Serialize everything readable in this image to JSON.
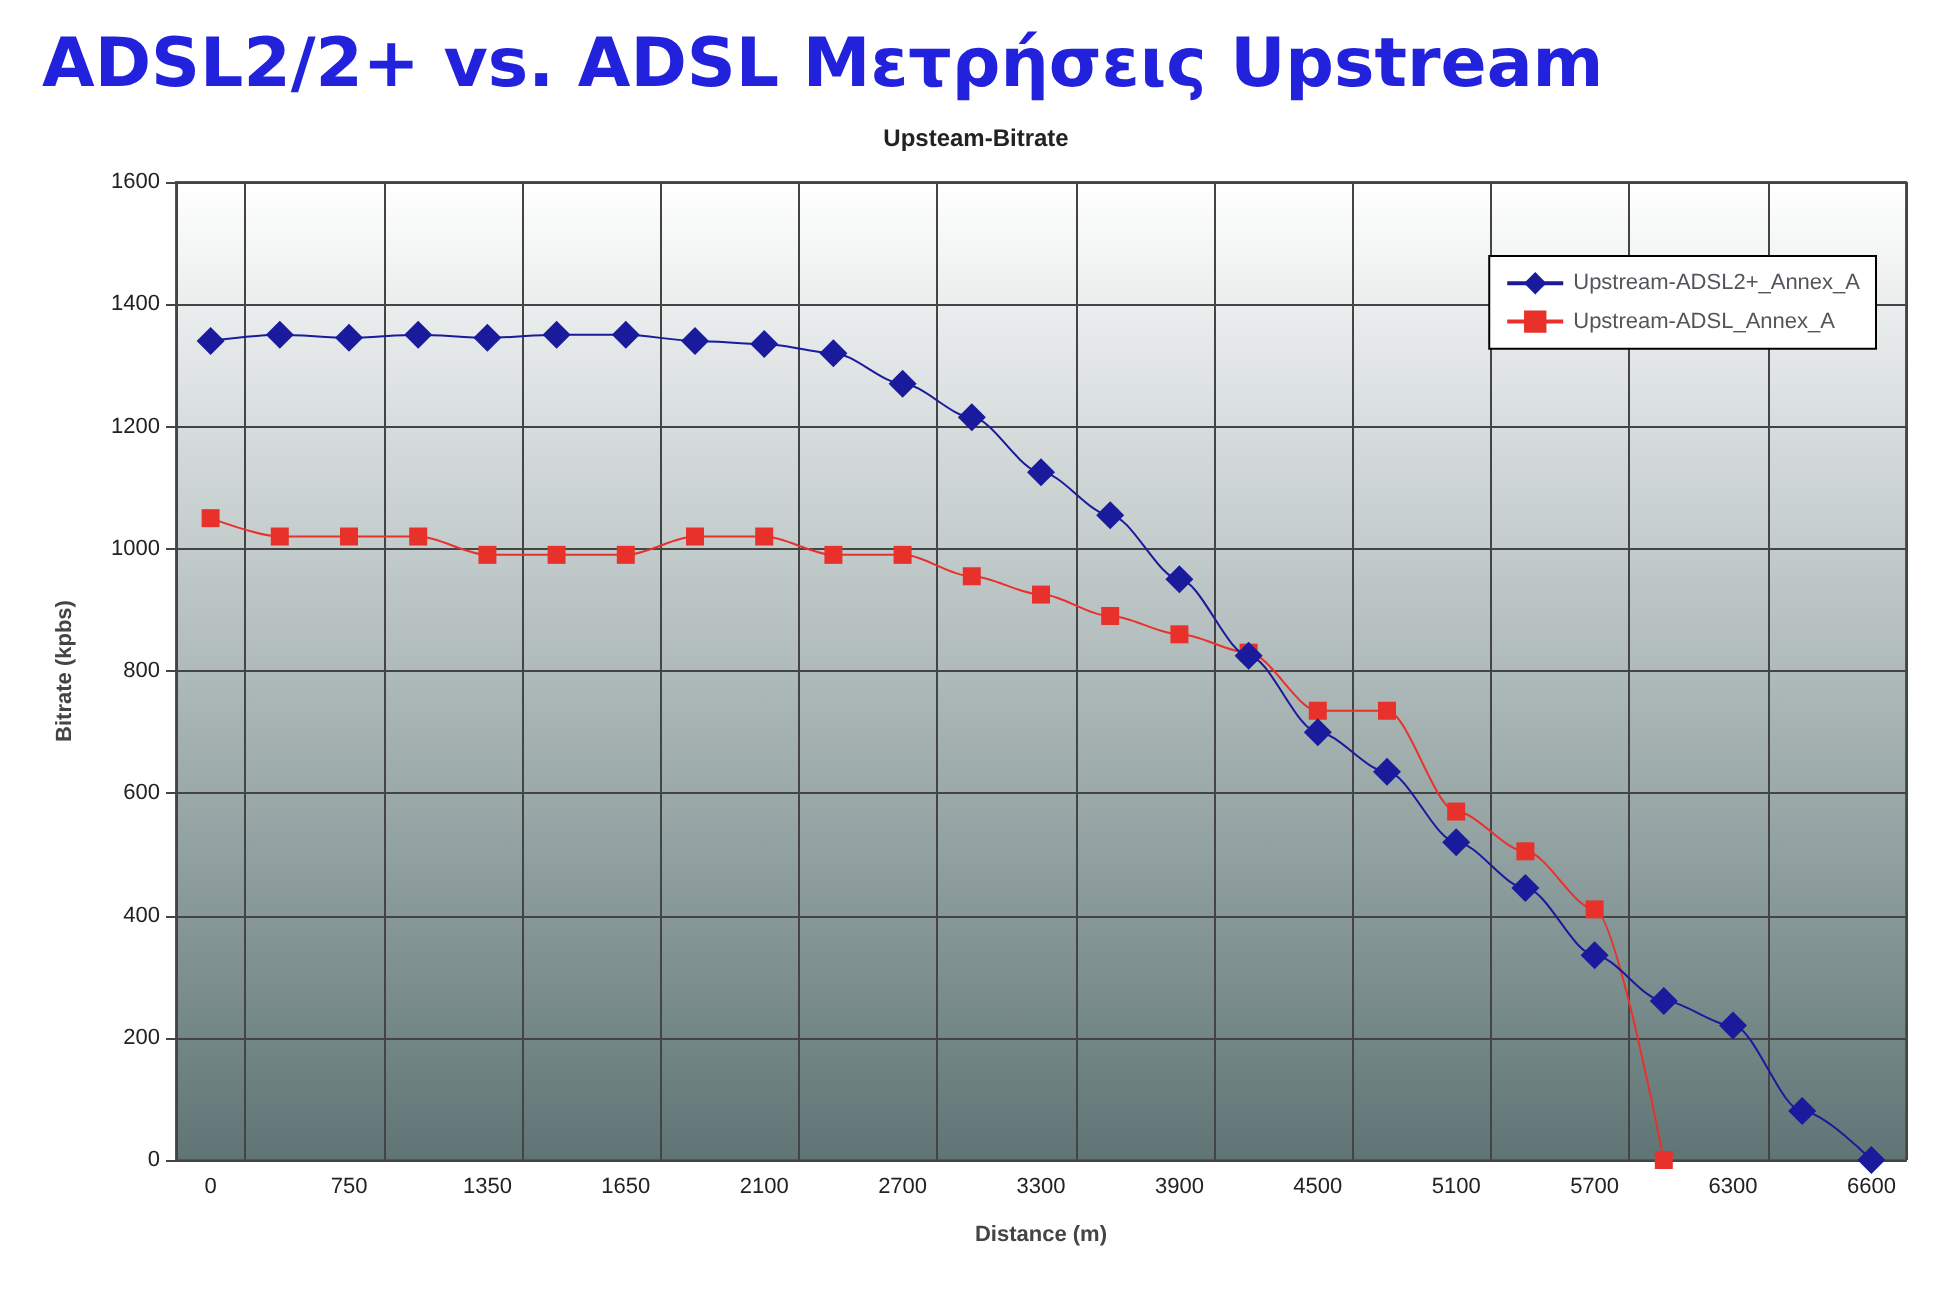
{
  "chart_data": {
    "type": "line",
    "title": "ADSL2/2+ vs. ADSL Μετρήσεις Upstream",
    "subtitle": "Upsteam-Bitrate",
    "xlabel": "Distance (m)",
    "ylabel": "Bitrate (kpbs)",
    "categories": [
      "0",
      null,
      "750",
      null,
      "1350",
      null,
      "1650",
      null,
      "2100",
      null,
      "2700",
      null,
      "3300",
      null,
      "3900",
      null,
      "4500",
      null,
      "5100",
      null,
      "5700",
      null,
      "6300",
      null,
      "6600"
    ],
    "series": [
      {
        "name": "Upstream-ADSL2+_Annex_A",
        "color": "#1a1a9c",
        "marker": "diamond",
        "values": [
          1340,
          1350,
          1345,
          1350,
          1345,
          1350,
          1350,
          1340,
          1335,
          1320,
          1270,
          1215,
          1125,
          1055,
          950,
          825,
          700,
          635,
          520,
          445,
          335,
          260,
          220,
          80,
          0
        ]
      },
      {
        "name": "Upstream-ADSL_Annex_A",
        "color": "#e8312a",
        "marker": "square",
        "values": [
          1050,
          1020,
          1020,
          1020,
          990,
          990,
          990,
          1020,
          1020,
          990,
          990,
          955,
          925,
          890,
          860,
          830,
          735,
          735,
          570,
          505,
          410,
          0,
          null,
          null,
          null
        ]
      }
    ],
    "ylim": [
      0,
      1600
    ],
    "yticks": [
      0,
      200,
      400,
      600,
      800,
      1000,
      1200,
      1400,
      1600
    ],
    "grid": true,
    "legend": "top right",
    "line_style": "solid"
  }
}
